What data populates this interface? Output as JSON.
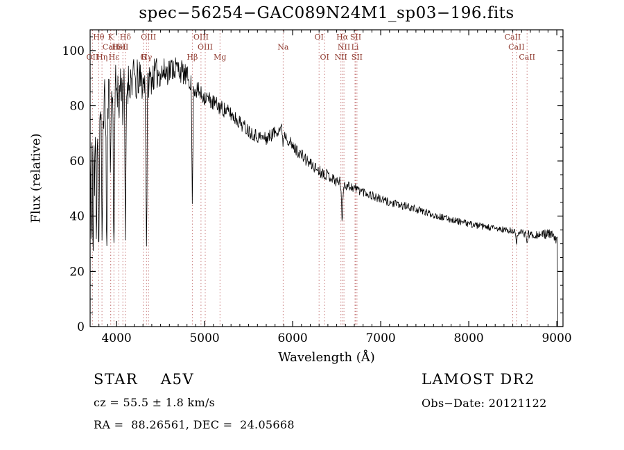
{
  "window": {
    "title": "spec−56254−GAC089N24M1_sp03−196.fits"
  },
  "chart_data": {
    "type": "line",
    "title": "spec−56254−GAC089N24M1_sp03−196.fits",
    "xlabel": "Wavelength (Å)",
    "ylabel": "Flux (relative)",
    "xlim": [
      3700,
      9070
    ],
    "ylim": [
      0,
      107.5
    ],
    "x_ticks": [
      4000,
      5000,
      6000,
      7000,
      8000,
      9000
    ],
    "y_ticks": [
      0,
      20,
      40,
      60,
      80,
      100
    ],
    "grid": false,
    "legend": "none",
    "series_color": "#000000",
    "marker_line_color": "#c87c7c",
    "marker_label_color": "#8f3a2f",
    "x_data_range": [
      3700,
      9015
    ],
    "continuum": [
      [
        3703,
        62
      ],
      [
        3760,
        72
      ],
      [
        3820,
        77
      ],
      [
        3880,
        82
      ],
      [
        3940,
        85
      ],
      [
        4000,
        87
      ],
      [
        4060,
        88
      ],
      [
        4120,
        88
      ],
      [
        4180,
        90
      ],
      [
        4240,
        90
      ],
      [
        4300,
        88
      ],
      [
        4360,
        89
      ],
      [
        4420,
        91
      ],
      [
        4480,
        92
      ],
      [
        4540,
        92
      ],
      [
        4600,
        93
      ],
      [
        4660,
        94
      ],
      [
        4720,
        93
      ],
      [
        4780,
        91
      ],
      [
        4840,
        89
      ],
      [
        4900,
        86
      ],
      [
        4960,
        84
      ],
      [
        5020,
        83
      ],
      [
        5100,
        81
      ],
      [
        5200,
        79
      ],
      [
        5300,
        77
      ],
      [
        5400,
        74
      ],
      [
        5500,
        71
      ],
      [
        5600,
        69
      ],
      [
        5700,
        68
      ],
      [
        5780,
        70
      ],
      [
        5860,
        72
      ],
      [
        5930,
        69
      ],
      [
        6000,
        65
      ],
      [
        6080,
        63
      ],
      [
        6160,
        60
      ],
      [
        6240,
        58
      ],
      [
        6320,
        56
      ],
      [
        6400,
        55
      ],
      [
        6480,
        53
      ],
      [
        6560,
        52
      ],
      [
        6640,
        51
      ],
      [
        6720,
        50
      ],
      [
        6800,
        49
      ],
      [
        6900,
        47.5
      ],
      [
        7000,
        46
      ],
      [
        7100,
        45
      ],
      [
        7200,
        44
      ],
      [
        7300,
        43.5
      ],
      [
        7400,
        42.5
      ],
      [
        7500,
        41.5
      ],
      [
        7600,
        40.5
      ],
      [
        7700,
        39.5
      ],
      [
        7800,
        38.8
      ],
      [
        7900,
        38
      ],
      [
        8000,
        37.2
      ],
      [
        8100,
        36.6
      ],
      [
        8200,
        36
      ],
      [
        8300,
        35.5
      ],
      [
        8400,
        35
      ],
      [
        8500,
        34.4
      ],
      [
        8600,
        33.9
      ],
      [
        8700,
        33.4
      ],
      [
        8800,
        33.2
      ],
      [
        8900,
        33.6
      ],
      [
        8950,
        33
      ],
      [
        9000,
        31
      ]
    ],
    "absorption_lines": [
      [
        3712,
        38,
        4
      ],
      [
        3734,
        42,
        4
      ],
      [
        3752,
        28,
        3
      ],
      [
        3771,
        46,
        4
      ],
      [
        3798,
        50,
        5
      ],
      [
        3835,
        52,
        5
      ],
      [
        3889,
        55,
        6
      ],
      [
        3933,
        28,
        4
      ],
      [
        3970,
        58,
        6
      ],
      [
        4026,
        14,
        4
      ],
      [
        4072,
        10,
        4
      ],
      [
        4101,
        56,
        6
      ],
      [
        4227,
        12,
        3
      ],
      [
        4340,
        58,
        6
      ],
      [
        4861,
        42,
        6
      ],
      [
        5892,
        4,
        5
      ],
      [
        6563,
        14,
        7
      ],
      [
        8542,
        4,
        5
      ],
      [
        8662,
        3.5,
        5
      ]
    ],
    "noise": {
      "seed": 11,
      "amplitude": [
        [
          3700,
          10
        ],
        [
          3900,
          9
        ],
        [
          4100,
          8
        ],
        [
          4400,
          6
        ],
        [
          4700,
          4.5
        ],
        [
          5000,
          3.2
        ],
        [
          5400,
          2.6
        ],
        [
          5800,
          2.4
        ],
        [
          6200,
          2.2
        ],
        [
          6600,
          2.0
        ],
        [
          7000,
          1.6
        ],
        [
          7400,
          1.4
        ],
        [
          7800,
          1.2
        ],
        [
          8200,
          1.2
        ],
        [
          8600,
          1.4
        ],
        [
          9000,
          1.8
        ]
      ]
    },
    "line_markers": [
      {
        "label": "Hθ",
        "wavelength": 3798,
        "row": 0
      },
      {
        "label": "K",
        "wavelength": 3933,
        "row": 0
      },
      {
        "label": "Hδ",
        "wavelength": 4101,
        "row": 0
      },
      {
        "label": "OIII",
        "wavelength": 4363,
        "row": 0
      },
      {
        "label": "OIII",
        "wavelength": 4959,
        "row": 0
      },
      {
        "label": "OI",
        "wavelength": 6300,
        "row": 0
      },
      {
        "label": "Hα",
        "wavelength": 6563,
        "row": 0
      },
      {
        "label": "SII",
        "wavelength": 6716,
        "row": 0
      },
      {
        "label": "CaII",
        "wavelength": 8498,
        "row": 0
      },
      {
        "label": "CaII",
        "wavelength": 3934,
        "row": 1
      },
      {
        "label": "HeI",
        "wavelength": 4026,
        "row": 1
      },
      {
        "label": "SII",
        "wavelength": 4072,
        "row": 1
      },
      {
        "label": "OIII",
        "wavelength": 5007,
        "row": 1
      },
      {
        "label": "Na",
        "wavelength": 5892,
        "row": 1
      },
      {
        "label": "NII",
        "wavelength": 6583,
        "row": 1
      },
      {
        "label": "Li",
        "wavelength": 6708,
        "row": 1
      },
      {
        "label": "CaII",
        "wavelength": 8542,
        "row": 1
      },
      {
        "label": "OII",
        "wavelength": 3727,
        "row": 2
      },
      {
        "label": "Hη",
        "wavelength": 3835,
        "row": 2
      },
      {
        "label": "Hε",
        "wavelength": 3970,
        "row": 2
      },
      {
        "label": "G",
        "wavelength": 4304,
        "row": 2
      },
      {
        "label": "Hγ",
        "wavelength": 4340,
        "row": 2
      },
      {
        "label": "Hβ",
        "wavelength": 4861,
        "row": 2
      },
      {
        "label": "Mg",
        "wavelength": 5175,
        "row": 2
      },
      {
        "label": "OI",
        "wavelength": 6363,
        "row": 2
      },
      {
        "label": "NII",
        "wavelength": 6548,
        "row": 2
      },
      {
        "label": "SII",
        "wavelength": 6731,
        "row": 2
      },
      {
        "label": "CaII",
        "wavelength": 8662,
        "row": 2
      }
    ]
  },
  "footer": {
    "class_line": "STAR    A5V",
    "cz_line": "cz = 55.5 ± 1.8 km/s",
    "coord_line": "RA =  88.26561, DEC =  24.05668",
    "survey": "LAMOST DR2",
    "obs_date": "Obs−Date: 20121122"
  }
}
